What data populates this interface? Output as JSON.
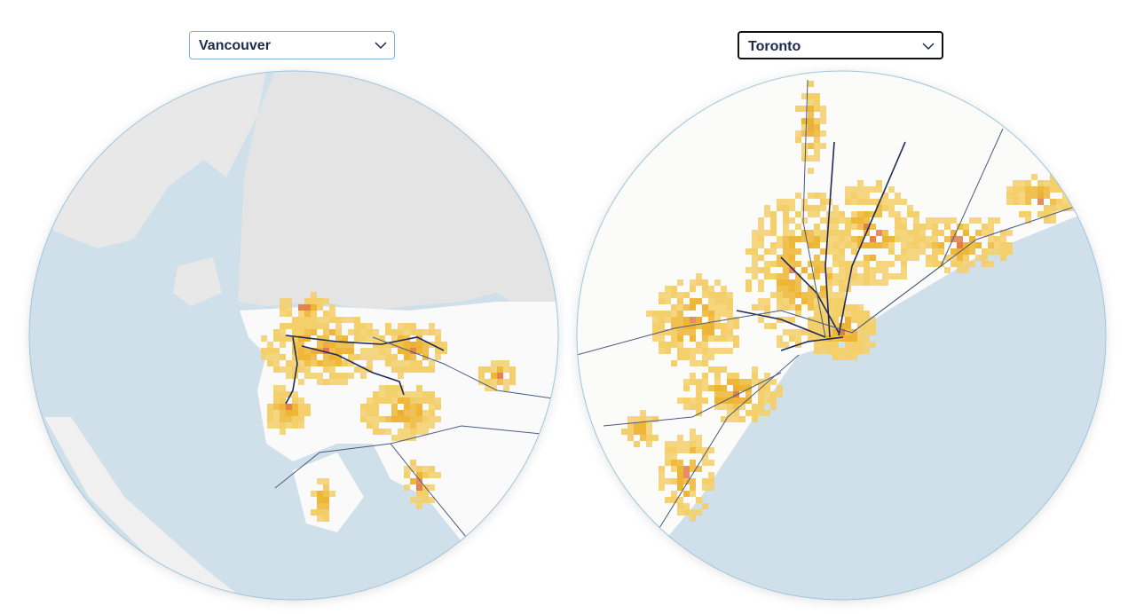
{
  "selectors": [
    {
      "label": "Vancouver"
    },
    {
      "label": "Toronto"
    }
  ]
}
